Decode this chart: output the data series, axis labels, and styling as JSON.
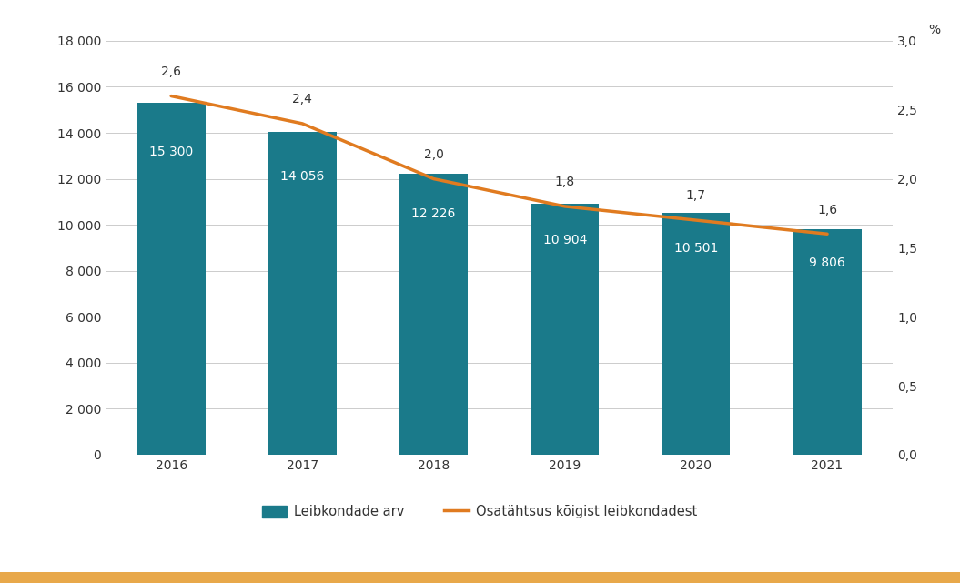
{
  "years": [
    2016,
    2017,
    2018,
    2019,
    2020,
    2021
  ],
  "bar_values": [
    15300,
    14056,
    12226,
    10904,
    10501,
    9806
  ],
  "line_values": [
    2.6,
    2.4,
    2.0,
    1.8,
    1.7,
    1.6
  ],
  "bar_color": "#1a7a8a",
  "line_color": "#e07b20",
  "bar_labels": [
    "15 300",
    "14 056",
    "12 226",
    "10 904",
    "10 501",
    "9 806"
  ],
  "line_labels": [
    "2,6",
    "2,4",
    "2,0",
    "1,8",
    "1,7",
    "1,6"
  ],
  "ylim_left": [
    0,
    18000
  ],
  "ylim_right": [
    0,
    3.0
  ],
  "yticks_left": [
    0,
    2000,
    4000,
    6000,
    8000,
    10000,
    12000,
    14000,
    16000,
    18000
  ],
  "yticks_right": [
    0.0,
    0.5,
    1.0,
    1.5,
    2.0,
    2.5,
    3.0
  ],
  "ytick_labels_left": [
    "0",
    "2 000",
    "4 000",
    "6 000",
    "8 000",
    "10 000",
    "12 000",
    "14 000",
    "16 000",
    "18 000"
  ],
  "ytick_labels_right": [
    "0,0",
    "0,5",
    "1,0",
    "1,5",
    "2,0",
    "2,5",
    "3,0"
  ],
  "right_axis_label": "%",
  "legend_bar_label": "Leibkondade arv",
  "legend_line_label": "Osatähtsus kõigist leibkondadest",
  "background_color": "#ffffff",
  "bar_width": 0.52,
  "bottom_bar_color": "#e8a84a",
  "label_fontsize": 10,
  "tick_fontsize": 10,
  "legend_fontsize": 10.5,
  "text_color": "#333333"
}
